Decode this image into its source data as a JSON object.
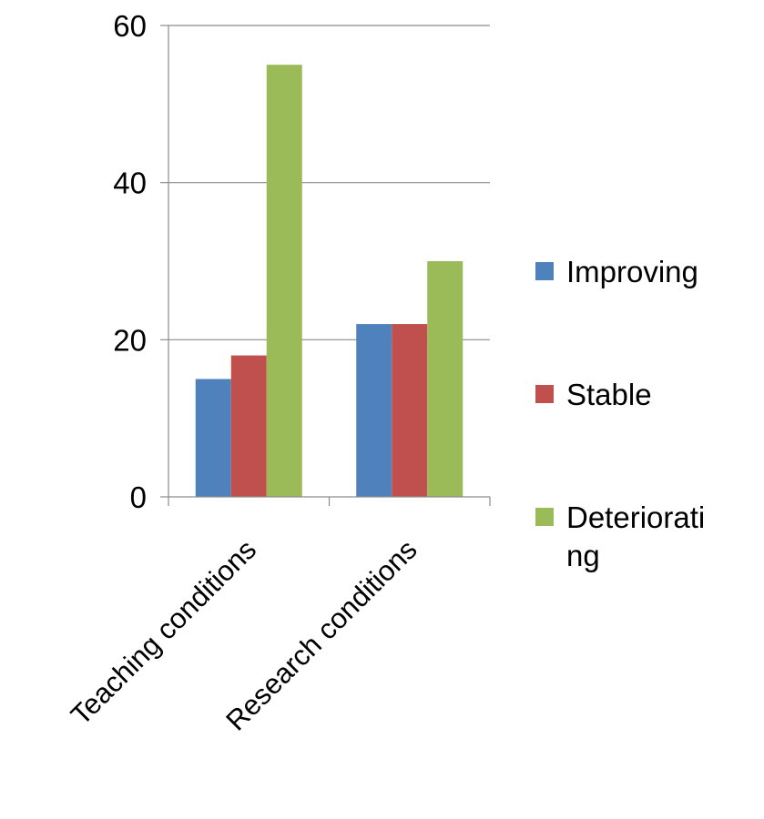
{
  "chart_data": {
    "type": "bar",
    "categories": [
      "Teaching conditions",
      "Research conditions"
    ],
    "series": [
      {
        "name": "Improving",
        "color": "#4f81bd",
        "values": [
          15,
          22
        ]
      },
      {
        "name": "Stable",
        "color": "#c0504d",
        "values": [
          18,
          22
        ]
      },
      {
        "name": "Deteriorating",
        "color": "#9bbb59",
        "values": [
          55,
          30
        ]
      }
    ],
    "ylim": [
      0,
      60
    ],
    "yticks": [
      "0",
      "20",
      "40",
      "60"
    ],
    "grid": true,
    "legend_placement": "right",
    "legend_display": [
      "Improving",
      "Stable",
      "Deteriorati\nng"
    ]
  }
}
